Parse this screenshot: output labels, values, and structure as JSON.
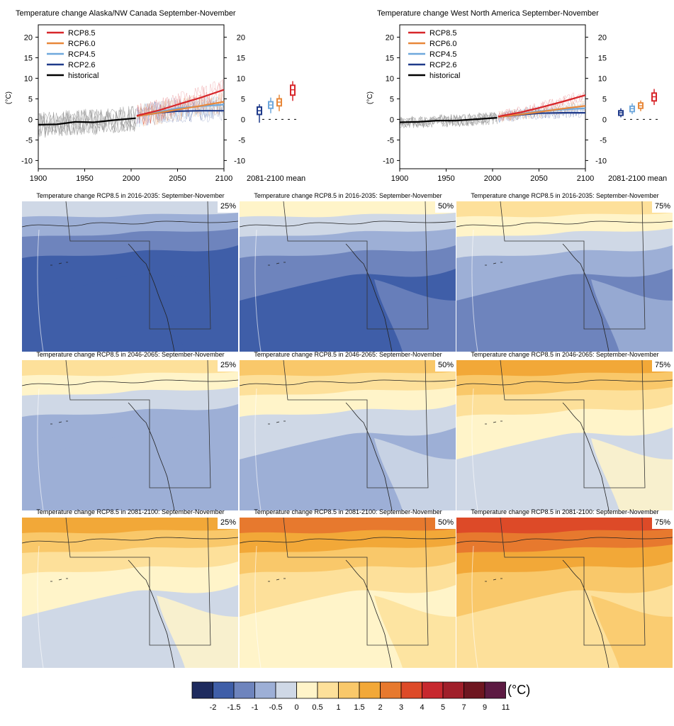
{
  "chart_data": [
    {
      "type": "line",
      "title": "Temperature change Alaska/NW Canada September-November",
      "ylabel": "(°C)",
      "xlim": [
        1900,
        2100
      ],
      "ylim": [
        -12,
        23
      ],
      "x_ticks": [
        "1900",
        "1950",
        "2000",
        "2050",
        "2100"
      ],
      "y_ticks": [
        "-10",
        "-5",
        "0",
        "5",
        "10",
        "15",
        "20"
      ],
      "box_label": "2081-2100 mean",
      "legend": [
        "RCP8.5",
        "RCP6.0",
        "RCP4.5",
        "RCP2.6",
        "historical"
      ],
      "series": [
        {
          "name": "historical",
          "color": "#000000",
          "x": [
            1900,
            1920,
            1940,
            1960,
            1980,
            2005
          ],
          "y": [
            -1.3,
            -1.2,
            -0.6,
            -0.7,
            -0.2,
            0.3
          ]
        },
        {
          "name": "RCP2.6",
          "color": "#1f3a8a",
          "x": [
            2006,
            2030,
            2050,
            2075,
            2100
          ],
          "y": [
            0.8,
            1.6,
            2.0,
            2.1,
            2.1
          ]
        },
        {
          "name": "RCP4.5",
          "color": "#6fa8dc",
          "x": [
            2006,
            2030,
            2050,
            2075,
            2100
          ],
          "y": [
            0.8,
            1.8,
            2.7,
            3.2,
            3.6
          ]
        },
        {
          "name": "RCP6.0",
          "color": "#e8883a",
          "x": [
            2006,
            2030,
            2050,
            2075,
            2100
          ],
          "y": [
            0.8,
            1.6,
            2.4,
            3.3,
            4.3
          ]
        },
        {
          "name": "RCP8.5",
          "color": "#d7262a",
          "x": [
            2006,
            2030,
            2050,
            2075,
            2100
          ],
          "y": [
            0.9,
            2.2,
            3.6,
            5.3,
            7.2
          ]
        }
      ],
      "boxes": [
        {
          "name": "RCP2.6",
          "color": "#1f3a8a",
          "min": -0.8,
          "q1": 1.2,
          "median": 2.1,
          "q3": 3.0,
          "max": 3.7
        },
        {
          "name": "RCP4.5",
          "color": "#6fa8dc",
          "min": 1.5,
          "q1": 2.7,
          "median": 3.5,
          "q3": 4.3,
          "max": 5.3
        },
        {
          "name": "RCP6.0",
          "color": "#e8883a",
          "min": 2.0,
          "q1": 3.3,
          "median": 4.2,
          "q3": 5.0,
          "max": 6.0
        },
        {
          "name": "RCP8.5",
          "color": "#d7262a",
          "min": 4.5,
          "q1": 5.9,
          "median": 7.2,
          "q3": 8.3,
          "max": 9.3
        }
      ]
    },
    {
      "type": "line",
      "title": "Temperature change West North America September-November",
      "ylabel": "(°C)",
      "xlim": [
        1900,
        2100
      ],
      "ylim": [
        -12,
        23
      ],
      "x_ticks": [
        "1900",
        "1950",
        "2000",
        "2050",
        "2100"
      ],
      "y_ticks": [
        "-10",
        "-5",
        "0",
        "5",
        "10",
        "15",
        "20"
      ],
      "box_label": "2081-2100 mean",
      "legend": [
        "RCP8.5",
        "RCP6.0",
        "RCP4.5",
        "RCP2.6",
        "historical"
      ],
      "series": [
        {
          "name": "historical",
          "color": "#000000",
          "x": [
            1900,
            1920,
            1940,
            1960,
            1980,
            2005
          ],
          "y": [
            -0.7,
            -0.6,
            -0.3,
            -0.3,
            0.0,
            0.4
          ]
        },
        {
          "name": "RCP2.6",
          "color": "#1f3a8a",
          "x": [
            2006,
            2030,
            2050,
            2075,
            2100
          ],
          "y": [
            0.6,
            1.1,
            1.5,
            1.6,
            1.6
          ]
        },
        {
          "name": "RCP4.5",
          "color": "#6fa8dc",
          "x": [
            2006,
            2030,
            2050,
            2075,
            2100
          ],
          "y": [
            0.6,
            1.3,
            2.0,
            2.4,
            2.7
          ]
        },
        {
          "name": "RCP6.0",
          "color": "#e8883a",
          "x": [
            2006,
            2030,
            2050,
            2075,
            2100
          ],
          "y": [
            0.6,
            1.2,
            1.8,
            2.6,
            3.3
          ]
        },
        {
          "name": "RCP8.5",
          "color": "#d7262a",
          "x": [
            2006,
            2030,
            2050,
            2075,
            2100
          ],
          "y": [
            0.7,
            1.7,
            2.8,
            4.3,
            5.9
          ]
        }
      ],
      "boxes": [
        {
          "name": "RCP2.6",
          "color": "#1f3a8a",
          "min": 0.5,
          "q1": 1.0,
          "median": 1.6,
          "q3": 2.1,
          "max": 2.7
        },
        {
          "name": "RCP4.5",
          "color": "#6fa8dc",
          "min": 1.3,
          "q1": 1.9,
          "median": 2.6,
          "q3": 3.2,
          "max": 3.9
        },
        {
          "name": "RCP6.0",
          "color": "#e8883a",
          "min": 2.0,
          "q1": 2.7,
          "median": 3.3,
          "q3": 4.0,
          "max": 4.6
        },
        {
          "name": "RCP8.5",
          "color": "#d7262a",
          "min": 3.5,
          "q1": 4.5,
          "median": 5.5,
          "q3": 6.4,
          "max": 7.4
        }
      ]
    },
    {
      "type": "heatmap",
      "panels": [
        {
          "title": "Temperature change RCP8.5 in 2016-2035: September-November",
          "percentile": "25%",
          "bands": [
            4,
            3,
            2
          ],
          "base_level": 1
        },
        {
          "title": "Temperature change RCP8.5 in 2016-2035: September-November",
          "percentile": "50%",
          "bands": [
            5,
            4,
            3
          ],
          "base_level": 1
        },
        {
          "title": "Temperature change RCP8.5 in 2016-2035: September-November",
          "percentile": "75%",
          "bands": [
            6,
            5,
            4
          ],
          "base_level": 2
        },
        {
          "title": "Temperature change RCP8.5 in 2046-2065: September-November",
          "percentile": "25%",
          "bands": [
            6,
            5,
            4
          ],
          "base_level": 3
        },
        {
          "title": "Temperature change RCP8.5 in 2046-2065: September-November",
          "percentile": "50%",
          "bands": [
            7,
            6,
            5
          ],
          "base_level": 3
        },
        {
          "title": "Temperature change RCP8.5 in 2046-2065: September-November",
          "percentile": "75%",
          "bands": [
            8,
            7,
            6
          ],
          "base_level": 4
        },
        {
          "title": "Temperature change RCP8.5 in 2081-2100: September-November",
          "percentile": "25%",
          "bands": [
            8,
            7,
            6
          ],
          "base_level": 4
        },
        {
          "title": "Temperature change RCP8.5 in 2081-2100: September-November",
          "percentile": "50%",
          "bands": [
            9,
            8,
            7
          ],
          "base_level": 5
        },
        {
          "title": "Temperature change RCP8.5 in 2081-2100: September-November",
          "percentile": "75%",
          "bands": [
            10,
            9,
            8
          ],
          "base_level": 6
        }
      ]
    },
    {
      "type": "colorbar",
      "unit": "(°C)",
      "labels": [
        "-2",
        "-1.5",
        "-1",
        "-0.5",
        "0",
        "0.5",
        "1",
        "1.5",
        "2",
        "3",
        "4",
        "5",
        "7",
        "9",
        "11"
      ],
      "colors": [
        "#1e2b5e",
        "#3f5ea8",
        "#6e84bd",
        "#9dafd6",
        "#cfd8e6",
        "#fff4c9",
        "#fde09a",
        "#f9c86a",
        "#f2a838",
        "#e7792e",
        "#dd4a28",
        "#c7282e",
        "#a01f2a",
        "#6e1620",
        "#5c1a42"
      ]
    }
  ]
}
